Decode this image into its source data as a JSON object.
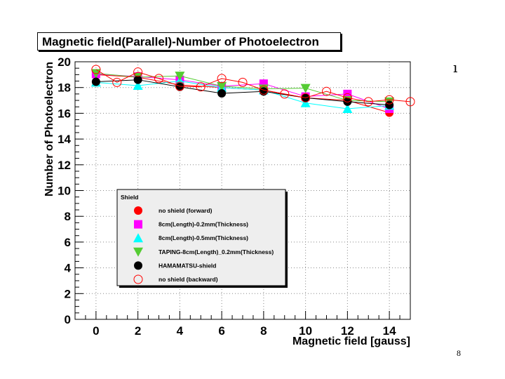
{
  "corner_mark": "ı",
  "page_number": "8",
  "chart_data": {
    "type": "line",
    "title": "Magnetic field(Parallel)-Number of Photoelectron",
    "xlabel": "Magnetic field [gauss]",
    "ylabel": "Number of Photoelectron",
    "xlim": [
      -1,
      15
    ],
    "ylim": [
      0,
      20
    ],
    "xticks": [
      0,
      2,
      4,
      6,
      8,
      10,
      12,
      14
    ],
    "yticks": [
      0,
      2,
      4,
      6,
      8,
      10,
      12,
      14,
      16,
      18,
      20
    ],
    "grid": true,
    "legend": {
      "title": "Shield",
      "placement": "lower-left-center"
    },
    "series": [
      {
        "name": "no shield (forward)",
        "color": "#ff0000",
        "marker": "filled-circle",
        "x": [
          0,
          2,
          4,
          6,
          8,
          10,
          12,
          14
        ],
        "y": [
          19.0,
          18.8,
          18.2,
          18.0,
          17.8,
          17.2,
          17.0,
          16.05
        ]
      },
      {
        "name": "8cm(Length)-0.2mm(Thickness)",
        "color": "#ff00ff",
        "marker": "square",
        "x": [
          0,
          2,
          4,
          6,
          8,
          10,
          12,
          14
        ],
        "y": [
          19.05,
          18.85,
          18.6,
          18.1,
          18.3,
          17.3,
          17.5,
          16.35
        ]
      },
      {
        "name": "8cm(Length)-0.5mm(Thickness)",
        "color": "#00ffff",
        "marker": "triangle-up",
        "x": [
          0,
          2,
          4,
          6,
          8,
          10,
          12,
          14
        ],
        "y": [
          18.4,
          18.15,
          18.5,
          18.0,
          17.8,
          16.8,
          16.35,
          16.6
        ]
      },
      {
        "name": "TAPING-8cm(Length)_0.2mm(Thickness)",
        "color": "#55cc33",
        "marker": "triangle-down",
        "x": [
          0,
          2,
          4,
          6,
          8,
          10,
          12,
          14
        ],
        "y": [
          19.1,
          18.8,
          18.9,
          18.1,
          17.9,
          17.95,
          17.0,
          16.9
        ]
      },
      {
        "name": "HAMAMATSU-shield",
        "color": "#000000",
        "marker": "filled-circle",
        "x": [
          0,
          2,
          4,
          6,
          8,
          10,
          12,
          14
        ],
        "y": [
          18.45,
          18.6,
          18.05,
          17.55,
          17.7,
          17.2,
          16.9,
          16.65
        ]
      },
      {
        "name": "no shield (backward)",
        "color": "#ff0000",
        "marker": "open-circle",
        "x": [
          0,
          1,
          2,
          3,
          4,
          5,
          6,
          7,
          8,
          9,
          10,
          11,
          12,
          13,
          14,
          15
        ],
        "y": [
          19.4,
          18.4,
          19.2,
          18.7,
          18.1,
          18.05,
          18.7,
          18.4,
          17.8,
          17.5,
          17.2,
          17.7,
          17.2,
          16.9,
          17.05,
          16.9
        ]
      }
    ]
  }
}
